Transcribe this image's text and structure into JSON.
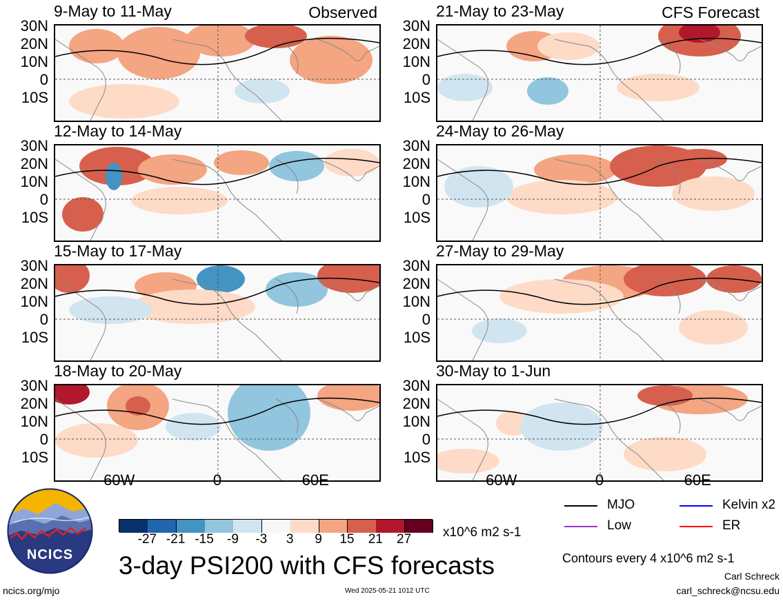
{
  "chart_data": {
    "type": "heatmap",
    "title": "3-day PSI200 with CFS forecasts",
    "units": "x10^6 m2 s-1",
    "contour_note": "Contours every 4 x10^6 m2 s-1",
    "observed_label": "Observed",
    "forecast_label": "CFS Forecast",
    "lat_ticks": [
      "30N",
      "20N",
      "10N",
      "0",
      "10S"
    ],
    "lon_ticks": [
      "60W",
      "0",
      "60E"
    ],
    "panels": [
      {
        "period": "9-May to 11-May",
        "source": "Observed"
      },
      {
        "period": "12-May to 14-May",
        "source": "Observed"
      },
      {
        "period": "15-May to 17-May",
        "source": "Observed"
      },
      {
        "period": "18-May to 20-May",
        "source": "Observed"
      },
      {
        "period": "21-May to 23-May",
        "source": "CFS Forecast"
      },
      {
        "period": "24-May to 26-May",
        "source": "CFS Forecast"
      },
      {
        "period": "27-May to 29-May",
        "source": "CFS Forecast"
      },
      {
        "period": "30-May to 1-Jun",
        "source": "CFS Forecast"
      }
    ],
    "colorbar": {
      "labels": [
        "-27",
        "-21",
        "-15",
        "-9",
        "-3",
        "3",
        "9",
        "15",
        "21",
        "27"
      ],
      "colors": [
        "#08306b",
        "#2166ac",
        "#4393c3",
        "#92c5de",
        "#d1e5f0",
        "#f7f7f7",
        "#fddbc7",
        "#f4a582",
        "#d6604d",
        "#b2182b",
        "#67001f"
      ]
    },
    "legend": [
      {
        "name": "MJO",
        "color": "#000000"
      },
      {
        "name": "Kelvin x2",
        "color": "#0000ff"
      },
      {
        "name": "Low",
        "color": "#9933cc"
      },
      {
        "name": "ER",
        "color": "#ff0000"
      }
    ]
  },
  "footer": {
    "logo_text": "NCICS",
    "site": "ncics.org/mjo",
    "timestamp": "Wed 2025-05-21 1012 UTC",
    "author": "Carl Schreck",
    "email": "carl_schreck@ncsu.edu"
  }
}
